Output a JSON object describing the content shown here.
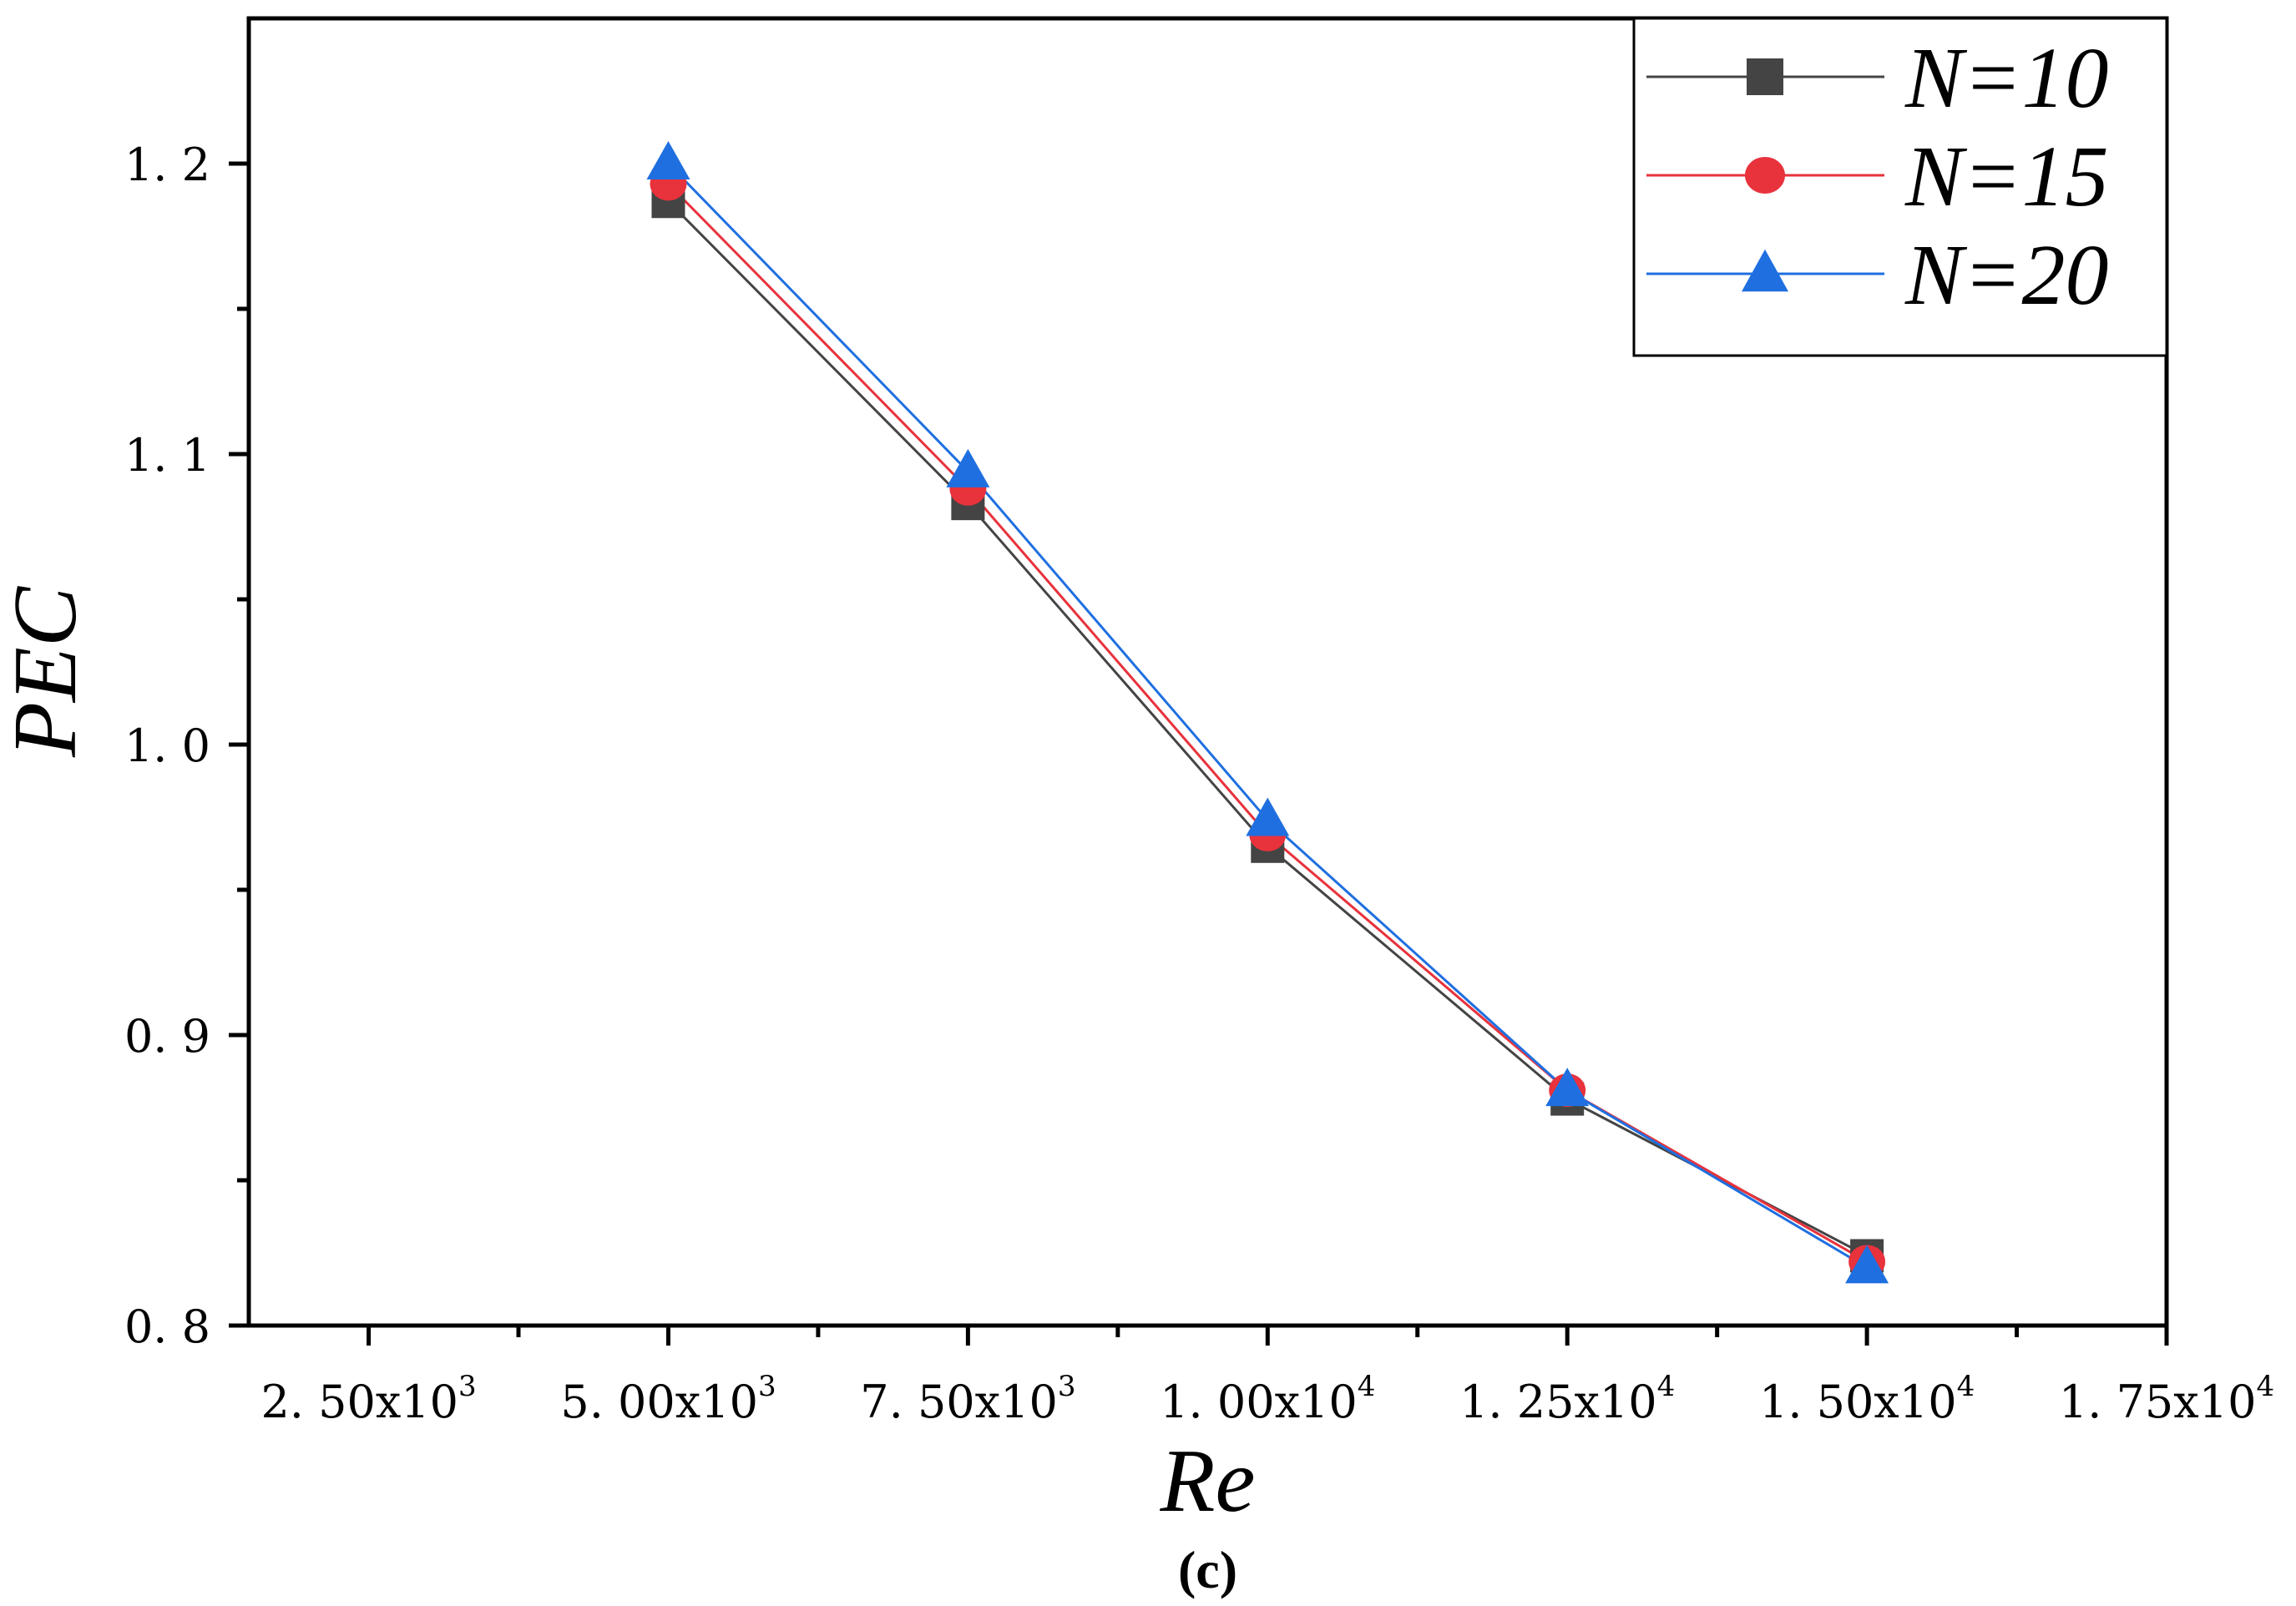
{
  "chart_data": {
    "type": "line",
    "title": "",
    "xlabel": "Re",
    "ylabel": "PEC",
    "caption": "(c)",
    "xlim": [
      1500,
      17500
    ],
    "ylim": [
      0.8,
      1.25
    ],
    "x_ticks": [
      {
        "value": 2500,
        "mantissa": "2. 50x10",
        "exp": "3"
      },
      {
        "value": 5000,
        "mantissa": "5. 00x10",
        "exp": "3"
      },
      {
        "value": 7500,
        "mantissa": "7. 50x10",
        "exp": "3"
      },
      {
        "value": 10000,
        "mantissa": "1. 00x10",
        "exp": "4"
      },
      {
        "value": 12500,
        "mantissa": "1. 25x10",
        "exp": "4"
      },
      {
        "value": 15000,
        "mantissa": "1. 50x10",
        "exp": "4"
      },
      {
        "value": 17500,
        "mantissa": "1. 75x10",
        "exp": "4"
      }
    ],
    "x_minor_ticks": [
      3750,
      6250,
      8750,
      11250,
      13750,
      16250
    ],
    "y_ticks": [
      {
        "value": 0.8,
        "label": "0. 8"
      },
      {
        "value": 0.9,
        "label": "0. 9"
      },
      {
        "value": 1.0,
        "label": "1. 0"
      },
      {
        "value": 1.1,
        "label": "1. 1"
      },
      {
        "value": 1.2,
        "label": "1. 2"
      }
    ],
    "y_minor_ticks": [
      0.85,
      0.95,
      1.05,
      1.15
    ],
    "x": [
      5000,
      7500,
      10000,
      12500,
      15000
    ],
    "series": [
      {
        "name": "N=10",
        "color": "#444444",
        "marker": "square",
        "values": [
          1.187,
          1.083,
          0.965,
          0.878,
          0.824
        ]
      },
      {
        "name": "N=15",
        "color": "#e8323c",
        "marker": "circle",
        "values": [
          1.193,
          1.088,
          0.969,
          0.881,
          0.822
        ]
      },
      {
        "name": "N=20",
        "color": "#1f6fe0",
        "marker": "triangle",
        "values": [
          1.2,
          1.094,
          0.974,
          0.881,
          0.82
        ]
      }
    ],
    "legend_position": "top-right"
  }
}
